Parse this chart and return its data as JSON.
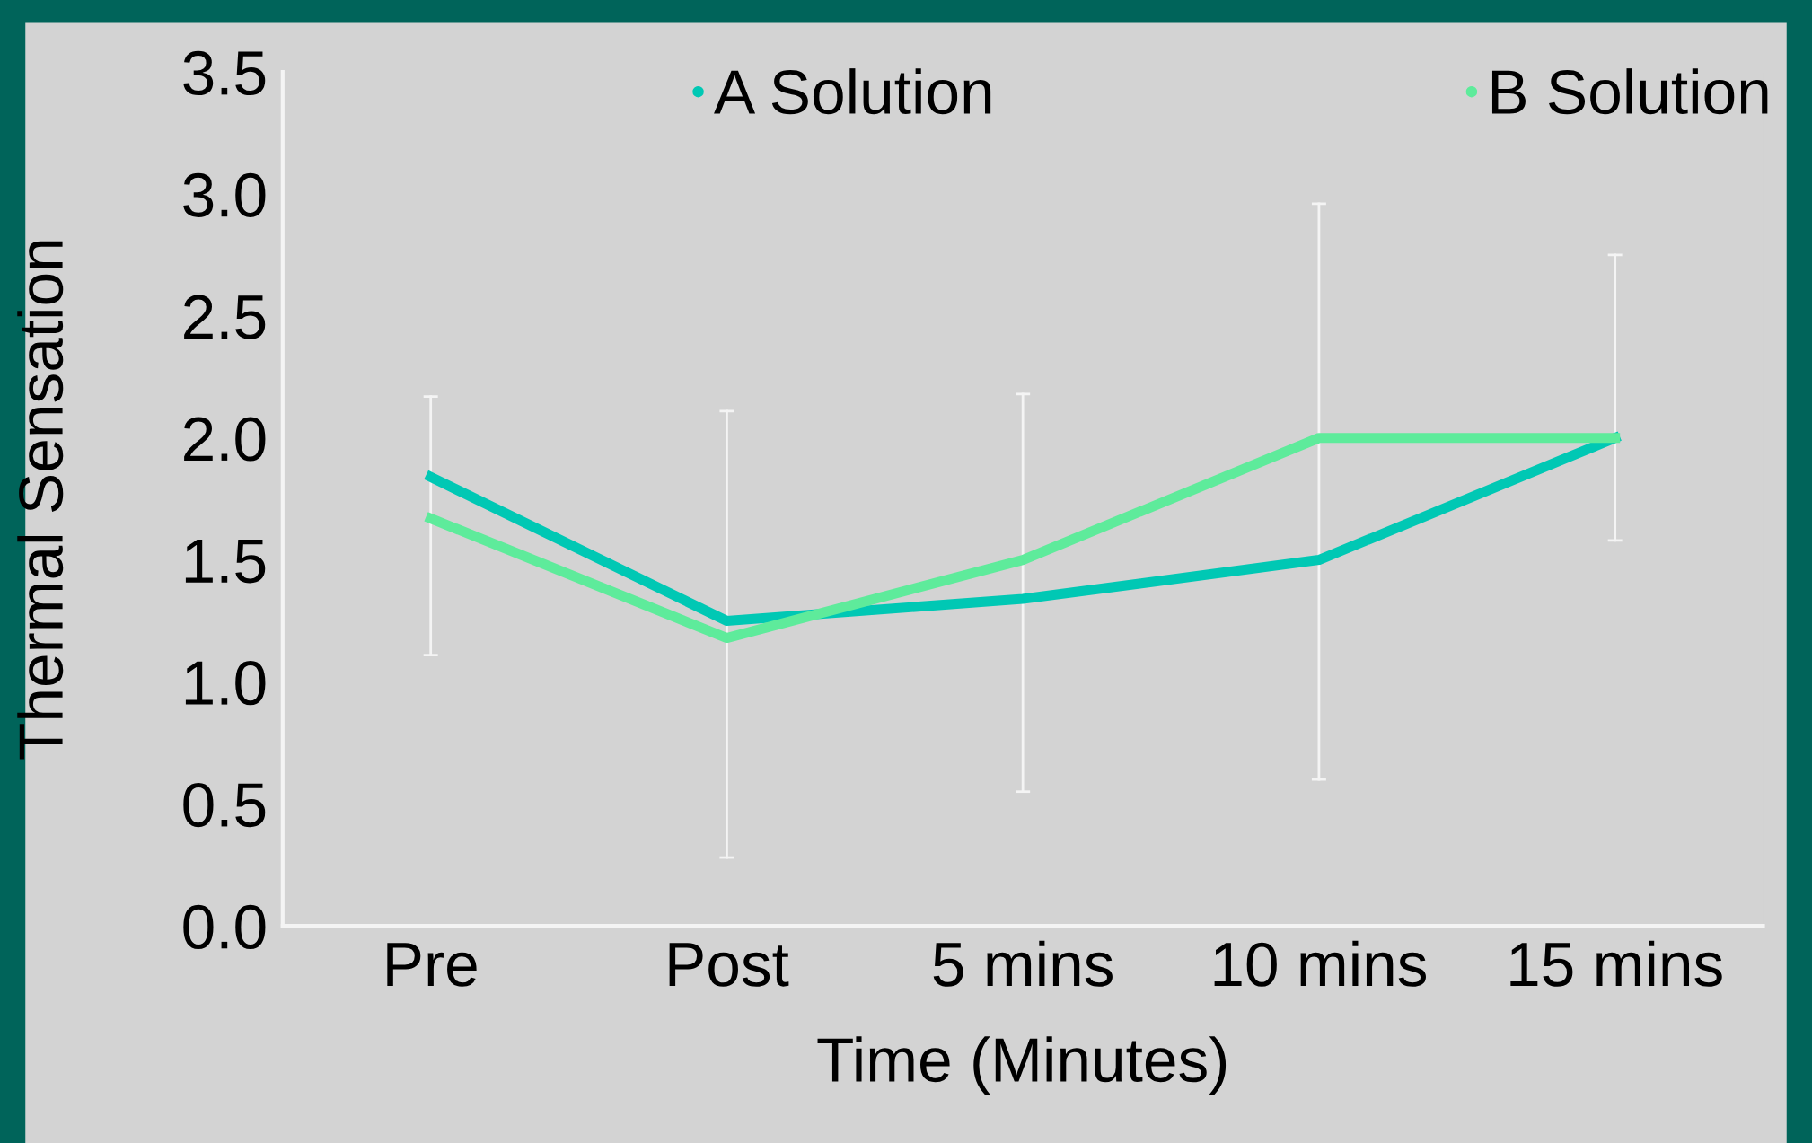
{
  "chart_data": {
    "type": "line",
    "xlabel": "Time (Minutes)",
    "ylabel": "Thermal Sensation",
    "categories": [
      "Pre",
      "Post",
      "5 mins",
      "10 mins",
      "15 mins"
    ],
    "series": [
      {
        "name": "A Solution",
        "color": "#00c8b4",
        "values": [
          1.84,
          1.25,
          1.34,
          1.5,
          2.0
        ]
      },
      {
        "name": "B Solution",
        "color": "#5eeb9b",
        "values": [
          1.67,
          1.18,
          1.5,
          2.0,
          2.0
        ],
        "errors": [
          [
            1.11,
            2.17
          ],
          [
            0.28,
            2.11
          ],
          [
            0.55,
            2.18
          ],
          [
            0.6,
            2.96
          ],
          [
            1.58,
            2.75
          ]
        ]
      }
    ],
    "ylim": [
      0,
      3.5
    ],
    "yticks": [
      {
        "value": 0,
        "label": "0.0"
      },
      0.5,
      {
        "value": 1,
        "label": "1.0"
      },
      1.5,
      {
        "value": 2,
        "label": "2.0"
      },
      2.5,
      {
        "value": 3,
        "label": "3.0"
      },
      3.5
    ],
    "grid": false,
    "legend": "top",
    "line_style": "solid"
  }
}
